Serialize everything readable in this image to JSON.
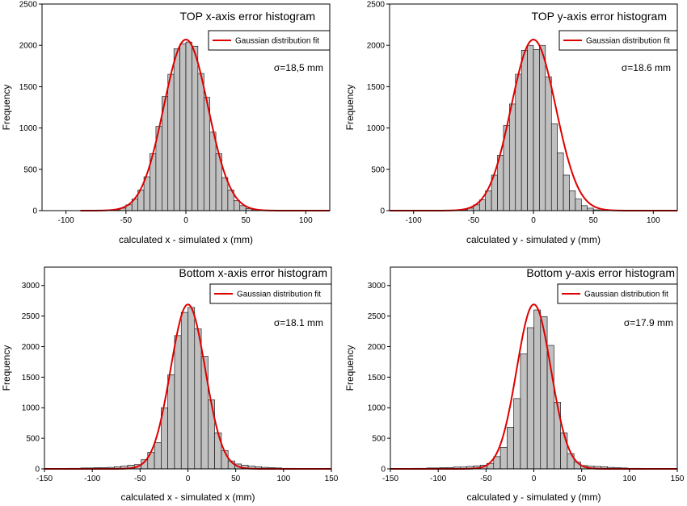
{
  "colors": {
    "bar_fill": "#c0c0c0",
    "bar_stroke": "#000000",
    "fit_line": "#dd0000",
    "axis": "#000000"
  },
  "chart_data": [
    {
      "type": "bar",
      "title": "TOP x-axis error histogram",
      "xlabel": "calculated x - simulated x (mm)",
      "ylabel": "Frequency",
      "xlim": [
        -120,
        120
      ],
      "ylim": [
        0,
        2500
      ],
      "xticks": [
        -100,
        -50,
        0,
        50,
        100
      ],
      "yticks": [
        0,
        500,
        1000,
        1500,
        2000,
        2500
      ],
      "bin_width": 5,
      "bin_starts": [
        -65,
        -60,
        -55,
        -50,
        -45,
        -40,
        -35,
        -30,
        -25,
        -20,
        -15,
        -10,
        -5,
        0,
        5,
        10,
        15,
        20,
        25,
        30,
        35,
        40,
        45,
        50,
        55
      ],
      "values": [
        5,
        10,
        30,
        70,
        140,
        250,
        410,
        690,
        1020,
        1380,
        1650,
        1960,
        2020,
        2040,
        1990,
        1660,
        1370,
        950,
        690,
        400,
        250,
        120,
        60,
        25,
        10
      ],
      "legend": "Gaussian distribution fit",
      "annotation": "σ=18,5 mm",
      "fit": {
        "peak": 2070,
        "sigma": 18.5,
        "range": [
          -88,
          120
        ]
      }
    },
    {
      "type": "bar",
      "title": "TOP y-axis error histogram",
      "xlabel": "calculated y - simulated y (mm)",
      "ylabel": "Frequency",
      "xlim": [
        -120,
        120
      ],
      "ylim": [
        0,
        2500
      ],
      "xticks": [
        -100,
        -50,
        0,
        50,
        100
      ],
      "yticks": [
        0,
        500,
        1000,
        1500,
        2000,
        2500
      ],
      "bin_width": 5,
      "bin_starts": [
        -65,
        -60,
        -55,
        -50,
        -45,
        -40,
        -35,
        -30,
        -25,
        -20,
        -15,
        -10,
        -5,
        0,
        5,
        10,
        15,
        20,
        25,
        30,
        35,
        40,
        45,
        50,
        55
      ],
      "values": [
        5,
        10,
        30,
        70,
        130,
        240,
        430,
        670,
        1030,
        1290,
        1650,
        1940,
        2000,
        1950,
        2000,
        1620,
        1050,
        700,
        430,
        240,
        140,
        60,
        30,
        10,
        5
      ],
      "legend": "Gaussian distribution fit",
      "annotation": "σ=18.6 mm",
      "fit": {
        "peak": 2070,
        "sigma": 18.6,
        "range": [
          -120,
          120
        ]
      }
    },
    {
      "type": "bar",
      "title": "Bottom x-axis error histogram",
      "xlabel": "calculated x - simulated x (mm)",
      "ylabel": "Frequency",
      "xlim": [
        -150,
        150
      ],
      "ylim": [
        0,
        3300
      ],
      "xticks": [
        -150,
        -100,
        -50,
        0,
        50,
        100,
        150
      ],
      "yticks": [
        0,
        500,
        1000,
        1500,
        2000,
        2500,
        3000
      ],
      "bin_width": 7,
      "bin_starts": [
        -126,
        -119,
        -112,
        -105,
        -98,
        -91,
        -84,
        -77,
        -70,
        -63,
        -56,
        -49,
        -42,
        -35,
        -28,
        -21,
        -14,
        -7,
        0,
        7,
        14,
        21,
        28,
        35,
        42,
        49,
        56,
        63,
        70,
        77,
        84,
        91,
        98,
        105,
        112,
        119
      ],
      "values": [
        10,
        10,
        15,
        15,
        20,
        20,
        25,
        35,
        45,
        60,
        70,
        150,
        270,
        430,
        1000,
        1540,
        2180,
        2560,
        2640,
        2290,
        1840,
        1130,
        590,
        300,
        130,
        80,
        60,
        45,
        35,
        25,
        20,
        15,
        10,
        10,
        5,
        5
      ],
      "legend": "Gaussian distribution fit",
      "annotation": "σ=18.1 mm",
      "fit": {
        "peak": 2690,
        "sigma": 18.1,
        "range": [
          -150,
          150
        ]
      }
    },
    {
      "type": "bar",
      "title": "Bottom y-axis error histogram",
      "xlabel": "calculated y - simulated y (mm)",
      "ylabel": "Frequency",
      "xlim": [
        -150,
        150
      ],
      "ylim": [
        0,
        3300
      ],
      "xticks": [
        -150,
        -100,
        -50,
        0,
        50,
        100,
        150
      ],
      "yticks": [
        0,
        500,
        1000,
        1500,
        2000,
        2500,
        3000
      ],
      "bin_width": 7,
      "bin_starts": [
        -126,
        -119,
        -112,
        -105,
        -98,
        -91,
        -84,
        -77,
        -70,
        -63,
        -56,
        -49,
        -42,
        -35,
        -28,
        -21,
        -14,
        -7,
        0,
        7,
        14,
        21,
        28,
        35,
        42,
        49,
        56,
        63,
        70,
        77,
        84,
        91,
        98,
        105,
        112,
        119
      ],
      "values": [
        10,
        10,
        15,
        15,
        20,
        20,
        30,
        30,
        40,
        50,
        60,
        90,
        200,
        350,
        680,
        1150,
        1880,
        2310,
        2600,
        2490,
        2020,
        1090,
        590,
        250,
        110,
        55,
        45,
        40,
        35,
        25,
        20,
        15,
        10,
        10,
        5,
        5
      ],
      "legend": "Gaussian distribution fit",
      "annotation": "σ=17.9 mm",
      "fit": {
        "peak": 2690,
        "sigma": 17.9,
        "range": [
          -150,
          150
        ]
      }
    }
  ]
}
